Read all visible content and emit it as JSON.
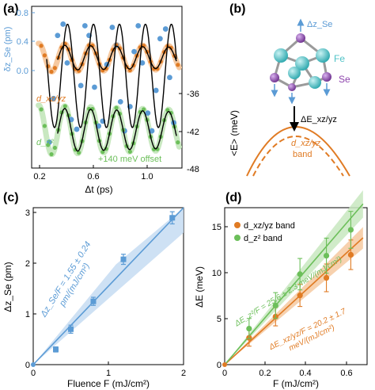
{
  "figure": {
    "panel_a": {
      "label": "(a)",
      "ylabel": "δz_Se (pm)",
      "left_ticks": [
        "0.8",
        "0.4",
        "0.0"
      ],
      "right_ticks": [
        "-36",
        "-42",
        "-48"
      ],
      "curve_labels": [
        "d_xz/yz",
        "d_z²"
      ],
      "offset_note": "+140 meV offset",
      "x_ticks": [
        "0.2",
        "0.6",
        "1.0"
      ],
      "xlabel": "Δt (ps)"
    },
    "panel_b": {
      "label": "(b)",
      "dz_label": "Δz_Se",
      "fe_label": "Fe",
      "se_label": "Se",
      "ylabel": "<E> (meV)",
      "de_label": "ΔE_xz/yz",
      "band_label_1": "d_xz/yz",
      "band_label_2": "band"
    },
    "panel_c": {
      "label": "(c)",
      "ylabel": "Δz_Se (pm)",
      "xlabel": "Fluence F (mJ/cm²)",
      "fit_line1": "Δz_Se/F = 1.55 ± 0.24",
      "fit_line2": "pm/(mJ/cm²)",
      "y_ticks": [
        "0",
        "1",
        "2",
        "3"
      ],
      "x_ticks": [
        "0",
        "1",
        "2"
      ]
    },
    "panel_d": {
      "label": "(d)",
      "ylabel": "ΔE (meV)",
      "xlabel": "F (mJ/cm²)",
      "legend1": "d_xz/yz band",
      "legend2": "d_z² band",
      "fit_green": "ΔE_z²/F = 25.6 ± 2.3 meV/(mJ/cm²)",
      "fit_orange1": "ΔE_xz/yz/F = 20.2 ± 1.7",
      "fit_orange2": "meV/(mJ/cm²)",
      "y_ticks": [
        "0",
        "5",
        "10",
        "15"
      ],
      "x_ticks": [
        "0",
        "0.2",
        "0.4",
        "0.6"
      ]
    }
  },
  "colors": {
    "blue": "#5b9bd5",
    "blue_band": "#c6dcf2",
    "orange": "#e07b24",
    "orange_band": "#f6c9a0",
    "green": "#6cbf5a",
    "green_band": "#c8e8c0",
    "fe": "#4fc3c7",
    "se": "#8e44ad"
  },
  "chart_data": [
    {
      "type": "line",
      "panel": "a",
      "xlabel": "Δt (ps)",
      "ylabel": "δz_Se (pm)",
      "xlim": [
        0.15,
        1.25
      ],
      "left_ylim": [
        -0.1,
        0.9
      ],
      "right_ylim": [
        -49,
        -32
      ],
      "series": [
        {
          "name": "",
          "axis": "left",
          "period_ps": 0.19,
          "amplitude": 0.32,
          "center": 0.47,
          "x": [
            0.28,
            0.31,
            0.34,
            0.38,
            0.41,
            0.44,
            0.48,
            0.51,
            0.54,
            0.57,
            0.61,
            0.64,
            0.67,
            0.7,
            0.74,
            0.77,
            0.8,
            0.83,
            0.87,
            0.9,
            0.93,
            0.96,
            1.0,
            1.03,
            1.06,
            1.09,
            1.13,
            1.16,
            1.19
          ],
          "y": [
            0.06,
            0.33,
            0.72,
            0.79,
            0.55,
            0.2,
            0.14,
            0.41,
            0.78,
            0.72,
            0.4,
            0.16,
            0.19,
            0.54,
            0.77,
            0.66,
            0.31,
            0.13,
            0.28,
            0.62,
            0.78,
            0.55,
            0.24,
            0.13,
            0.38,
            0.7,
            0.76,
            0.46,
            0.18
          ]
        },
        {
          "name": "d_xz/yz",
          "axis": "right",
          "period_ps": 0.19,
          "center": -37.4,
          "amplitude": 1.5
        },
        {
          "name": "d_z²",
          "axis": "right",
          "period_ps": 0.19,
          "center": -45.0,
          "amplitude": 2.6
        }
      ]
    },
    {
      "type": "scatter",
      "panel": "c",
      "xlabel": "Fluence F (mJ/cm²)",
      "ylabel": "Δz_Se (pm)",
      "xlim": [
        0,
        2
      ],
      "ylim": [
        0,
        3.1
      ],
      "x": [
        0.3,
        0.5,
        0.8,
        1.2,
        1.85
      ],
      "y": [
        0.3,
        0.7,
        1.25,
        2.08,
        2.9
      ],
      "yerr": [
        0.05,
        0.08,
        0.08,
        0.1,
        0.12
      ],
      "fit_slope": 1.55
    },
    {
      "type": "scatter",
      "panel": "d",
      "xlabel": "F (mJ/cm²)",
      "ylabel": "ΔE (meV)",
      "xlim": [
        0,
        0.7
      ],
      "ylim": [
        0,
        17
      ],
      "series": [
        {
          "name": "d_xz/yz band",
          "x": [
            0.12,
            0.25,
            0.37,
            0.5,
            0.62
          ],
          "y": [
            2.9,
            5.2,
            7.5,
            9.4,
            11.9
          ],
          "yerr": [
            0.9,
            1.0,
            1.2,
            1.5,
            1.6
          ],
          "fit_slope": 20.2
        },
        {
          "name": "d_z² band",
          "x": [
            0.12,
            0.25,
            0.37,
            0.5,
            0.62
          ],
          "y": [
            3.9,
            6.4,
            9.8,
            11.8,
            14.6
          ],
          "yerr": [
            1.1,
            1.4,
            1.7,
            1.9,
            2.0
          ],
          "fit_slope": 25.6
        }
      ]
    }
  ]
}
